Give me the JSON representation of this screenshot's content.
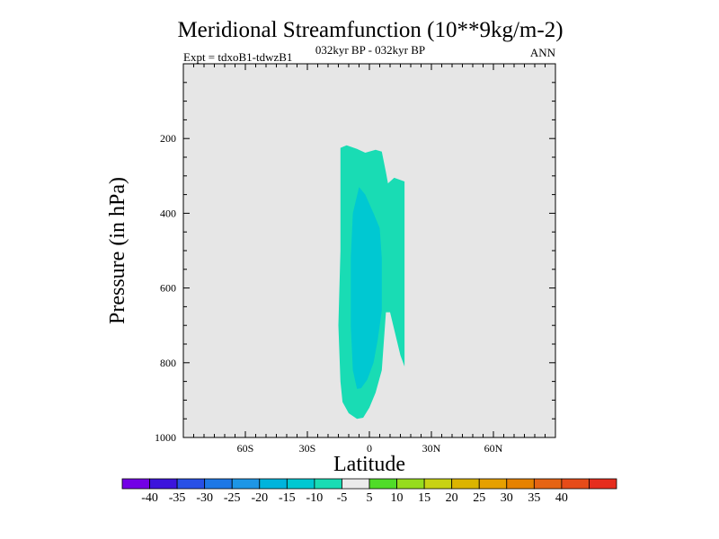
{
  "chart_data": {
    "type": "contour",
    "title": "Meridional Streamfunction (10**9kg/m-2)",
    "subtitle_left": "Expt = tdxoB1-tdwzB1",
    "subtitle_center": "032kyr BP - 032kyr BP",
    "subtitle_right": "ANN",
    "xlabel": "Latitude",
    "ylabel": "Pressure (in hPa)",
    "xlim": [
      -90,
      90
    ],
    "ylim": [
      0,
      1000
    ],
    "y_inverted": true,
    "x_ticks": [
      {
        "value": -60,
        "label": "60S"
      },
      {
        "value": -30,
        "label": "30S"
      },
      {
        "value": 0,
        "label": "0"
      },
      {
        "value": 30,
        "label": "30N"
      },
      {
        "value": 60,
        "label": "60N"
      }
    ],
    "y_ticks": [
      {
        "value": 200,
        "label": "200"
      },
      {
        "value": 400,
        "label": "400"
      },
      {
        "value": 600,
        "label": "600"
      },
      {
        "value": 800,
        "label": "800"
      },
      {
        "value": 1000,
        "label": "1000"
      }
    ],
    "background_color": "#e6e6e6",
    "contour_regions": [
      {
        "name": "-10 to -5",
        "color": "#19dcb4",
        "polygon": [
          [
            -14,
            225
          ],
          [
            -11,
            218
          ],
          [
            -6,
            228
          ],
          [
            -2,
            238
          ],
          [
            3,
            230
          ],
          [
            6,
            235
          ],
          [
            8,
            290
          ],
          [
            9,
            320
          ],
          [
            12,
            305
          ],
          [
            17,
            315
          ],
          [
            17,
            810
          ],
          [
            15,
            780
          ],
          [
            10,
            665
          ],
          [
            8,
            665
          ],
          [
            6,
            820
          ],
          [
            3,
            880
          ],
          [
            0,
            920
          ],
          [
            -3,
            947
          ],
          [
            -6,
            950
          ],
          [
            -10,
            935
          ],
          [
            -13,
            905
          ],
          [
            -14,
            850
          ],
          [
            -15,
            700
          ],
          [
            -14,
            500
          ]
        ]
      },
      {
        "name": "-15 to -10",
        "color": "#00c8d2",
        "polygon": [
          [
            -5,
            330
          ],
          [
            -2,
            350
          ],
          [
            2,
            400
          ],
          [
            5,
            440
          ],
          [
            6,
            520
          ],
          [
            6,
            660
          ],
          [
            4,
            740
          ],
          [
            2,
            800
          ],
          [
            -1,
            845
          ],
          [
            -4,
            868
          ],
          [
            -6,
            870
          ],
          [
            -8,
            820
          ],
          [
            -9,
            700
          ],
          [
            -9,
            520
          ],
          [
            -8,
            400
          ]
        ]
      }
    ],
    "colorbar": {
      "colors": [
        "#7300e6",
        "#3c14dc",
        "#2850e6",
        "#1e78e6",
        "#1e96e6",
        "#00b4dc",
        "#00c8d2",
        "#19dcb4",
        "#ebebeb",
        "#50dc28",
        "#96dc1e",
        "#c8d214",
        "#dcb400",
        "#e6a000",
        "#e68200",
        "#e66414",
        "#e64b19",
        "#e62d1e"
      ],
      "labels": [
        "-40",
        "-35",
        "-30",
        "-25",
        "-20",
        "-15",
        "-10",
        "-5",
        "5",
        "10",
        "15",
        "20",
        "25",
        "30",
        "35",
        "40"
      ]
    }
  }
}
